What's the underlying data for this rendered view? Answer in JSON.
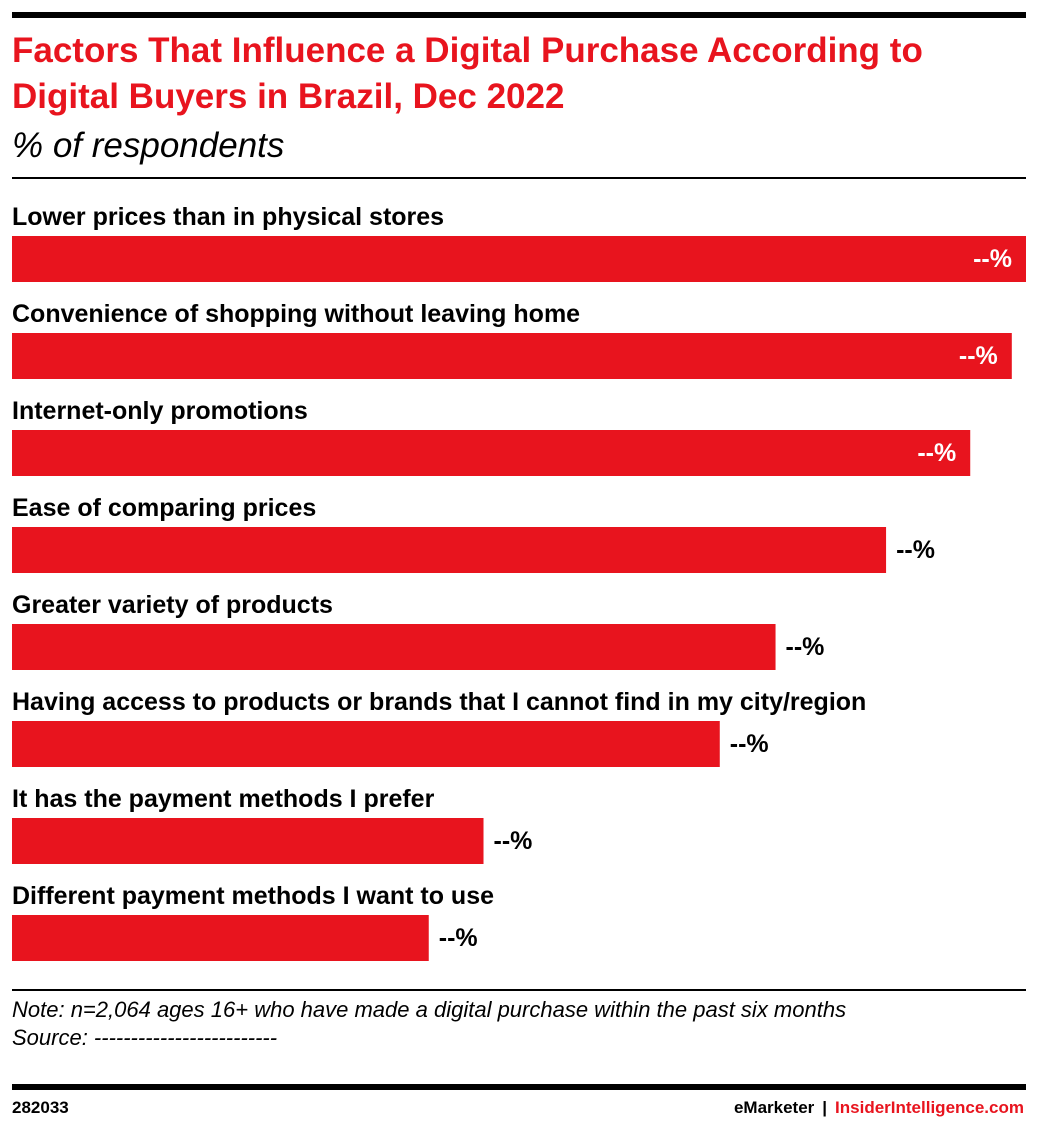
{
  "header": {
    "title": "Factors That Influence a Digital Purchase According to Digital Buyers in Brazil, Dec 2022",
    "subtitle": "% of respondents"
  },
  "colors": {
    "bar": "#e8141e",
    "title": "#e8141e"
  },
  "chart_data": {
    "type": "bar",
    "orientation": "horizontal",
    "categories": [
      "Lower prices than in physical stores",
      "Convenience of shopping without leaving home",
      "Internet-only promotions",
      "Ease of comparing prices",
      "Greater variety of products",
      "Having access to products or brands that I cannot find in my city/region",
      "It has the payment methods I prefer",
      "Different payment methods I want to use"
    ],
    "values": [
      100,
      98.6,
      94.5,
      86.2,
      75.3,
      69.8,
      46.5,
      41.1
    ],
    "data_labels": [
      "--%",
      "--%",
      "--%",
      "--%",
      "--%",
      "--%",
      "--%",
      "--%"
    ],
    "xlim": [
      0,
      100
    ],
    "grid": false,
    "legend": "none"
  },
  "footer": {
    "note": "Note: n=2,064 ages 16+ who have made a digital purchase within the past six months",
    "source": "Source: -------------------------",
    "chart_id": "282033",
    "brand": "eMarketer",
    "separator": "|",
    "site": "InsiderIntelligence.com"
  }
}
